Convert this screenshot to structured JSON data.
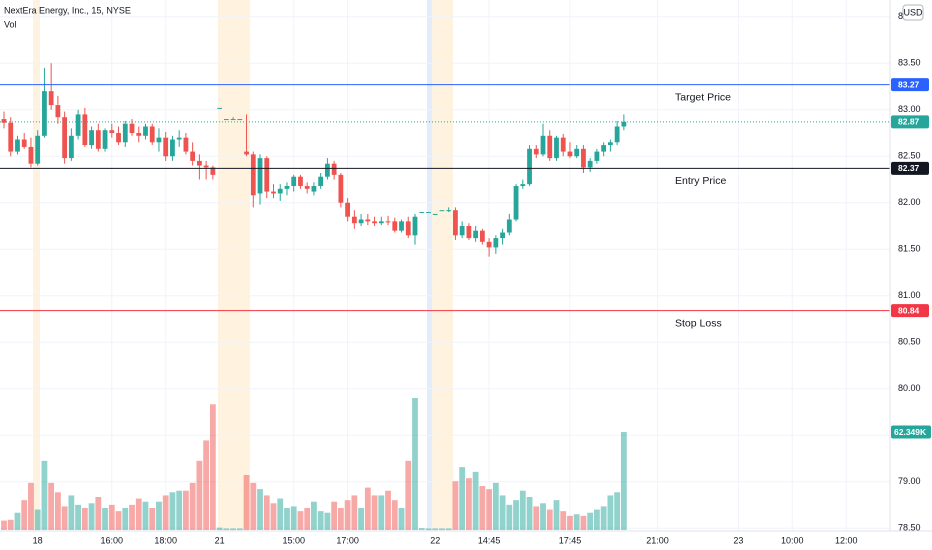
{
  "chart_data": {
    "type": "candlestick",
    "title": "NextEra Energy, Inc., 15, NYSE",
    "volume_title": "Vol",
    "currency": "USD",
    "up_color": "#26a69a",
    "down_color": "#ef5350",
    "grid": true,
    "categories": [
      null,
      null,
      null,
      null,
      null,
      "18",
      null,
      null,
      null,
      null,
      null,
      null,
      null,
      null,
      null,
      null,
      "16:00",
      null,
      null,
      null,
      null,
      null,
      null,
      null,
      "18:00",
      null,
      null,
      null,
      null,
      null,
      null,
      null,
      "21",
      null,
      null,
      null,
      null,
      null,
      null,
      null,
      null,
      null,
      null,
      "15:00",
      null,
      null,
      null,
      null,
      null,
      null,
      null,
      "17:00",
      null,
      null,
      null,
      null,
      null,
      null,
      null,
      null,
      null,
      null,
      null,
      null,
      "22",
      null,
      null,
      null,
      null,
      null,
      null,
      null,
      "14:45",
      null,
      null,
      null,
      null,
      null,
      null,
      null,
      null,
      null,
      null,
      null,
      "17:45",
      null,
      null,
      null,
      null,
      null,
      null,
      null,
      null,
      null,
      null,
      null,
      null,
      "21:00",
      null,
      null,
      null,
      null,
      null,
      null,
      null,
      null,
      null,
      null,
      null,
      "23",
      null,
      null,
      null,
      null,
      null,
      null,
      null,
      "10:00",
      null,
      null,
      null,
      null,
      null,
      null,
      null,
      "12:00",
      null,
      null,
      null,
      null,
      null,
      null
    ],
    "open": [
      82.9,
      82.86,
      82.55,
      82.68,
      82.6,
      82.42,
      82.72,
      83.2,
      83.05,
      82.92,
      82.48,
      82.72,
      82.95,
      82.62,
      82.78,
      82.58,
      82.78,
      82.75,
      82.65,
      82.85,
      82.75,
      82.72,
      82.82,
      82.65,
      82.7,
      82.5,
      82.68,
      82.7,
      82.55,
      82.45,
      82.4,
      82.38,
      83.02,
      82.9,
      82.9,
      82.9,
      82.55,
      82.52,
      82.1,
      82.48,
      82.12,
      82.1,
      82.15,
      82.18,
      82.28,
      82.18,
      82.12,
      82.18,
      82.28,
      82.42,
      82.3,
      82.0,
      81.85,
      81.78,
      81.82,
      81.8,
      81.78,
      81.8,
      81.8,
      81.7,
      81.8,
      81.65,
      81.9,
      81.9,
      81.88,
      81.92,
      81.92,
      81.92,
      81.65,
      81.75,
      81.62,
      81.7,
      81.58,
      81.52,
      81.62,
      81.68,
      81.82,
      82.18,
      82.2,
      82.58,
      82.52,
      82.72,
      82.48,
      82.7,
      82.55,
      82.5,
      82.58,
      82.38,
      82.45,
      82.55,
      82.62,
      82.65,
      82.82,
      null,
      null,
      null,
      null,
      null,
      null,
      null,
      null,
      null,
      null,
      null,
      null,
      null,
      null,
      null,
      null,
      null,
      null,
      null,
      null,
      null,
      null,
      null,
      null,
      null,
      null,
      null,
      null,
      null,
      null,
      null,
      null,
      null,
      null,
      null,
      null,
      null,
      null,
      null
    ],
    "high": [
      82.98,
      82.92,
      82.72,
      82.75,
      82.7,
      82.78,
      83.45,
      83.5,
      83.15,
      82.98,
      82.8,
      83.0,
      83.02,
      82.82,
      82.85,
      82.8,
      82.85,
      82.82,
      82.88,
      82.9,
      82.82,
      82.85,
      82.85,
      82.8,
      82.76,
      82.72,
      82.78,
      82.75,
      82.65,
      82.52,
      82.45,
      82.4,
      83.02,
      82.9,
      82.92,
      82.9,
      82.95,
      82.55,
      82.52,
      82.5,
      82.2,
      82.2,
      82.22,
      82.3,
      82.3,
      82.22,
      82.22,
      82.32,
      82.48,
      82.45,
      82.32,
      82.05,
      81.92,
      81.88,
      81.88,
      81.85,
      81.85,
      81.86,
      81.84,
      81.82,
      81.85,
      81.88,
      81.9,
      81.9,
      81.88,
      81.92,
      81.95,
      81.95,
      81.8,
      81.78,
      81.75,
      81.72,
      81.62,
      81.65,
      81.72,
      81.88,
      82.2,
      82.25,
      82.62,
      82.62,
      82.85,
      82.78,
      82.72,
      82.74,
      82.65,
      82.62,
      82.62,
      82.48,
      82.58,
      82.65,
      82.68,
      82.88,
      82.95,
      null,
      null,
      null,
      null,
      null,
      null,
      null,
      null,
      null,
      null,
      null,
      null,
      null,
      null,
      null,
      null,
      null,
      null,
      null,
      null,
      null,
      null,
      null,
      null,
      null,
      null,
      null,
      null,
      null,
      null,
      null,
      null,
      null,
      null,
      null,
      null,
      null,
      null,
      null
    ],
    "low": [
      82.8,
      82.5,
      82.52,
      82.58,
      82.38,
      82.4,
      82.7,
      83.0,
      82.85,
      82.42,
      82.45,
      82.68,
      82.6,
      82.58,
      82.55,
      82.55,
      82.7,
      82.62,
      82.6,
      82.72,
      82.65,
      82.68,
      82.62,
      82.55,
      82.45,
      82.45,
      82.6,
      82.52,
      82.4,
      82.25,
      82.25,
      82.25,
      83.02,
      82.9,
      82.9,
      82.9,
      82.5,
      81.95,
      81.98,
      82.05,
      82.05,
      82.02,
      82.08,
      82.12,
      82.15,
      82.1,
      82.08,
      82.15,
      82.25,
      82.25,
      81.95,
      81.8,
      81.72,
      81.75,
      81.76,
      81.75,
      81.76,
      81.76,
      81.68,
      81.68,
      81.62,
      81.55,
      81.9,
      81.9,
      81.88,
      81.92,
      81.9,
      81.6,
      81.62,
      81.6,
      81.58,
      81.55,
      81.42,
      81.45,
      81.55,
      81.65,
      81.8,
      82.15,
      82.18,
      82.48,
      82.5,
      82.45,
      82.45,
      82.5,
      82.48,
      82.48,
      82.32,
      82.33,
      82.42,
      82.5,
      82.55,
      82.62,
      82.78,
      null,
      null,
      null,
      null,
      null,
      null,
      null,
      null,
      null,
      null,
      null,
      null,
      null,
      null,
      null,
      null,
      null,
      null,
      null,
      null,
      null,
      null,
      null,
      null,
      null,
      null,
      null,
      null,
      null,
      null,
      null,
      null,
      null,
      null,
      null,
      null,
      null,
      null,
      null
    ],
    "close": [
      82.86,
      82.55,
      82.68,
      82.6,
      82.42,
      82.72,
      83.2,
      83.05,
      82.92,
      82.48,
      82.72,
      82.95,
      82.62,
      82.78,
      82.58,
      82.78,
      82.75,
      82.65,
      82.85,
      82.75,
      82.72,
      82.82,
      82.65,
      82.7,
      82.5,
      82.68,
      82.7,
      82.55,
      82.45,
      82.4,
      82.38,
      82.3,
      83.02,
      82.9,
      82.9,
      82.9,
      82.52,
      82.08,
      82.48,
      82.12,
      82.1,
      82.15,
      82.18,
      82.28,
      82.18,
      82.15,
      82.18,
      82.28,
      82.42,
      82.3,
      82.0,
      81.85,
      81.78,
      81.82,
      81.8,
      81.78,
      81.8,
      81.79,
      81.7,
      81.8,
      81.65,
      81.85,
      81.9,
      81.9,
      81.88,
      81.92,
      81.92,
      81.65,
      81.75,
      81.62,
      81.7,
      81.58,
      81.52,
      81.62,
      81.68,
      81.82,
      82.18,
      82.2,
      82.58,
      82.52,
      82.72,
      82.48,
      82.7,
      82.55,
      82.5,
      82.58,
      82.38,
      82.45,
      82.55,
      82.62,
      82.65,
      82.82,
      82.87,
      null,
      null,
      null,
      null,
      null,
      null,
      null,
      null,
      null,
      null,
      null,
      null,
      null,
      null,
      null,
      null,
      null,
      null,
      null,
      null,
      null,
      null,
      null,
      null,
      null,
      null,
      null,
      null,
      null,
      null,
      null,
      null,
      null,
      null,
      null,
      null,
      null,
      null,
      null
    ],
    "volume": [
      6000,
      6500,
      11000,
      19000,
      30000,
      13000,
      44000,
      30000,
      24000,
      15000,
      22000,
      16000,
      14000,
      17000,
      21000,
      14000,
      16000,
      12000,
      14000,
      16000,
      20000,
      18000,
      14000,
      18000,
      22000,
      24000,
      25000,
      25000,
      30000,
      44000,
      57000,
      80000,
      1500,
      1000,
      1000,
      1000,
      35000,
      30000,
      26000,
      22000,
      17000,
      20000,
      14000,
      15000,
      12000,
      14000,
      18000,
      12000,
      11000,
      18000,
      14000,
      19000,
      22000,
      14000,
      27000,
      22000,
      22000,
      25000,
      19000,
      14000,
      44000,
      84000,
      1200,
      1000,
      1000,
      1000,
      1000,
      31000,
      40000,
      33000,
      37000,
      28000,
      26000,
      30000,
      22000,
      16000,
      19000,
      25000,
      21000,
      15000,
      17000,
      13000,
      19000,
      12000,
      9000,
      10000,
      9000,
      11000,
      13000,
      15000,
      22000,
      24000,
      62349,
      null,
      null,
      null,
      null,
      null,
      null,
      null,
      null,
      null,
      null,
      null,
      null,
      null,
      null,
      null,
      null,
      null,
      null,
      null,
      null,
      null,
      null,
      null,
      null,
      null,
      null,
      null,
      null,
      null,
      null,
      null,
      null,
      null,
      null,
      null,
      null,
      null,
      null,
      null
    ],
    "last_volume_label": "62.349K",
    "ylim": [
      78.46,
      84.18
    ],
    "yticks": [
      {
        "value": 84,
        "label": "84.00"
      },
      {
        "value": 83.5,
        "label": "83.50"
      },
      {
        "value": 83,
        "label": "83.00"
      },
      {
        "value": 82.5,
        "label": "82.50"
      },
      {
        "value": 82,
        "label": "82.00"
      },
      {
        "value": 81.5,
        "label": "81.50"
      },
      {
        "value": 81,
        "label": "81.00"
      },
      {
        "value": 80.5,
        "label": "80.50"
      },
      {
        "value": 80,
        "label": "80.00"
      },
      {
        "value": 79.5,
        "label": "79.50"
      },
      {
        "value": 79,
        "label": "79.00"
      },
      {
        "value": 78.5,
        "label": "78.50"
      }
    ],
    "price_lines": [
      {
        "name": "Target Price",
        "value": 83.27,
        "color": "#2962ff"
      },
      {
        "name": "Entry Price",
        "value": 82.37,
        "color": "#131722"
      },
      {
        "name": "Stop Loss",
        "value": 80.84,
        "color": "#f23645"
      }
    ]
  }
}
